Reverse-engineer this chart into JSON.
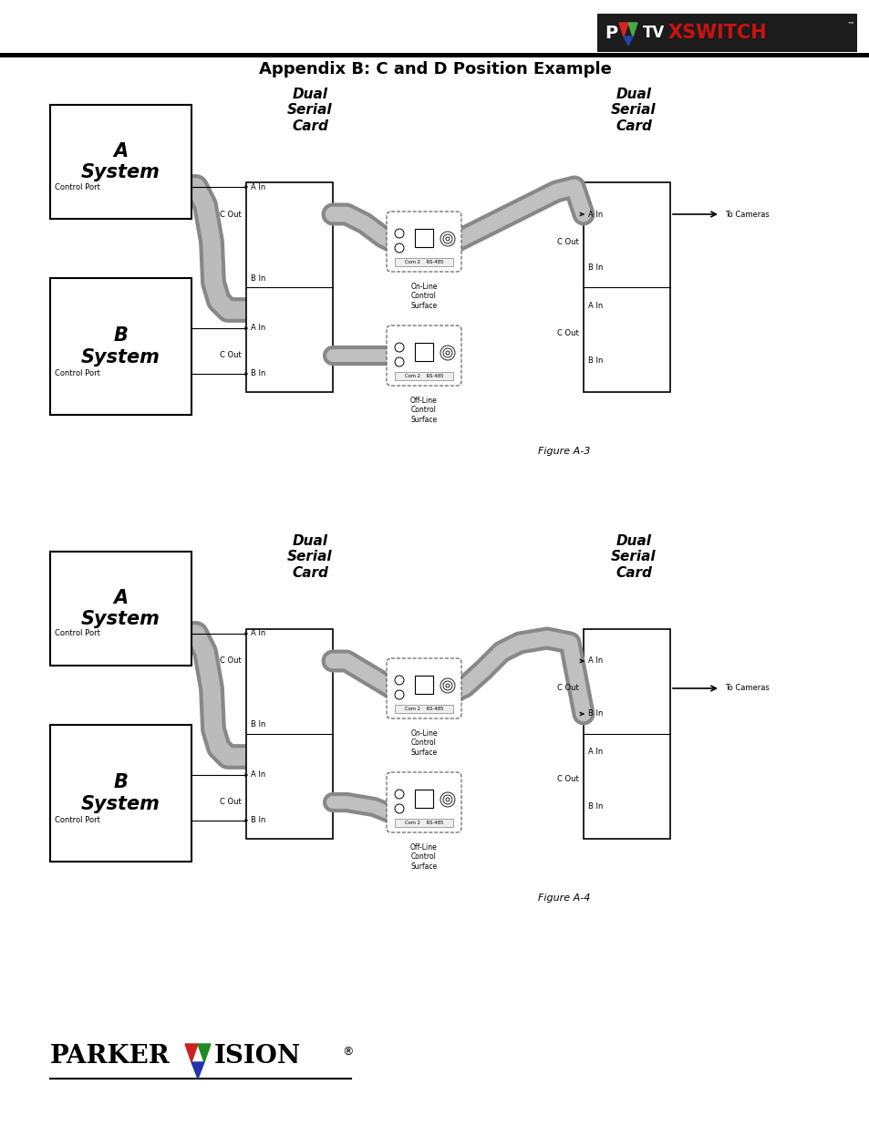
{
  "bg_color": "#ffffff",
  "title_text": "Appendix B: C and D Position Example",
  "fig1_caption": "Figure A-3",
  "fig2_caption": "Figure A-4",
  "logo_bg": "#1a1a1a",
  "gray_dark": "#a0a0a0",
  "gray_light": "#c8c8c8",
  "black": "#000000"
}
